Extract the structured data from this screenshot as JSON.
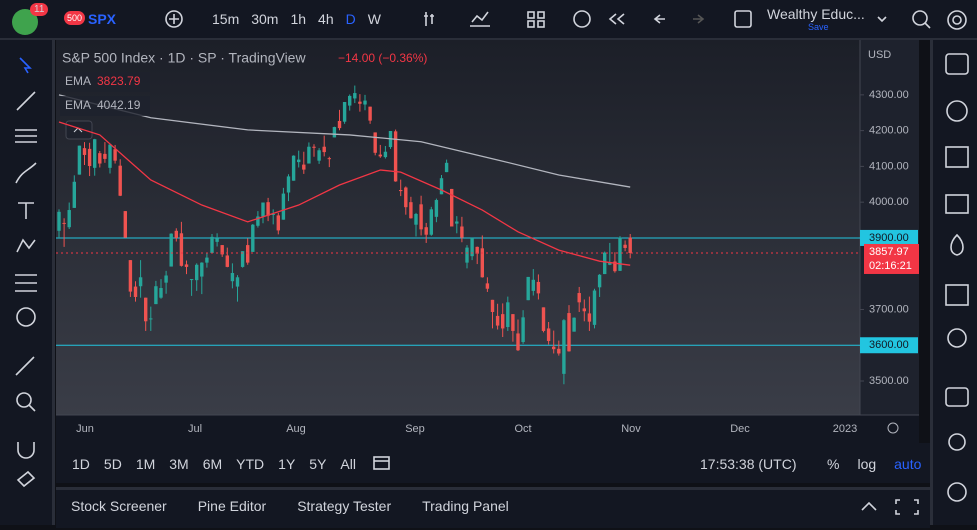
{
  "toolbar": {
    "badge": "11",
    "symbol_badge": "500",
    "symbol": "SPX",
    "intervals": [
      "15m",
      "30m",
      "1h",
      "4h",
      "D",
      "W"
    ],
    "layout_name": "Wealthy Educ...",
    "save": "Save"
  },
  "chart_data": {
    "type": "candlestick",
    "title": "S&P 500 Index · 1D · SP · TradingView",
    "change": "−14.00 (−0.36%)",
    "currency": "USD",
    "up_color": "#26a69a",
    "down_color": "#ef5350",
    "candles": [
      [
        3920,
        3980,
        3900,
        3973
      ],
      [
        3942,
        3955,
        3875,
        3941
      ],
      [
        3930,
        3999,
        3925,
        3978
      ],
      [
        3984,
        4075,
        3984,
        4057
      ],
      [
        4077,
        4158,
        4077,
        4158
      ],
      [
        4151,
        4168,
        4104,
        4132
      ],
      [
        4149,
        4166,
        4073,
        4101
      ],
      [
        4096,
        4177,
        4074,
        4176
      ],
      [
        4137,
        4143,
        4097,
        4108
      ],
      [
        4135,
        4168,
        4110,
        4121
      ],
      [
        4096,
        4164,
        4080,
        4161
      ],
      [
        4148,
        4160,
        4108,
        4116
      ],
      [
        4102,
        4120,
        4017,
        4018
      ],
      [
        3975,
        3975,
        3900,
        3901
      ],
      [
        3838,
        3838,
        3735,
        3750
      ],
      [
        3764,
        3779,
        3722,
        3735
      ],
      [
        3765,
        3838,
        3733,
        3790
      ],
      [
        3733,
        3733,
        3640,
        3667
      ],
      [
        3675,
        3708,
        3640,
        3675
      ],
      [
        3715,
        3780,
        3715,
        3765
      ],
      [
        3733,
        3785,
        3730,
        3760
      ],
      [
        3775,
        3808,
        3744,
        3795
      ],
      [
        3820,
        3913,
        3820,
        3912
      ],
      [
        3920,
        3927,
        3890,
        3900
      ],
      [
        3913,
        3945,
        3820,
        3822
      ],
      [
        3826,
        3837,
        3799,
        3819
      ],
      [
        3785,
        3785,
        3738,
        3785
      ],
      [
        3782,
        3829,
        3752,
        3825
      ],
      [
        3792,
        3832,
        3743,
        3831
      ],
      [
        3831,
        3857,
        3817,
        3845
      ],
      [
        3858,
        3911,
        3858,
        3903
      ],
      [
        3889,
        3913,
        3876,
        3899
      ],
      [
        3880,
        3880,
        3847,
        3854
      ],
      [
        3851,
        3873,
        3818,
        3819
      ],
      [
        3779,
        3829,
        3759,
        3802
      ],
      [
        3764,
        3796,
        3722,
        3790
      ],
      [
        3819,
        3863,
        3817,
        3863
      ],
      [
        3880,
        3899,
        3825,
        3831
      ],
      [
        3861,
        3939,
        3861,
        3937
      ],
      [
        3934,
        3975,
        3929,
        3960
      ],
      [
        3960,
        3999,
        3941,
        3999
      ],
      [
        4000,
        4012,
        3947,
        3962
      ],
      [
        3966,
        3980,
        3938,
        3967
      ],
      [
        3963,
        3970,
        3910,
        3921
      ],
      [
        3951,
        4040,
        3951,
        4024
      ],
      [
        4027,
        4078,
        4003,
        4072
      ],
      [
        4060,
        4131,
        4060,
        4130
      ],
      [
        4112,
        4144,
        4097,
        4119
      ],
      [
        4105,
        4141,
        4079,
        4091
      ],
      [
        4108,
        4167,
        4108,
        4155
      ],
      [
        4155,
        4162,
        4127,
        4152
      ],
      [
        4116,
        4151,
        4107,
        4145
      ],
      [
        4155,
        4186,
        4128,
        4140
      ],
      [
        4123,
        4127,
        4098,
        4122
      ],
      [
        4181,
        4211,
        4181,
        4210
      ],
      [
        4227,
        4258,
        4201,
        4207
      ],
      [
        4225,
        4280,
        4219,
        4280
      ],
      [
        4270,
        4301,
        4256,
        4297
      ],
      [
        4290,
        4326,
        4277,
        4305
      ],
      [
        4281,
        4302,
        4253,
        4275
      ],
      [
        4273,
        4300,
        4257,
        4284
      ],
      [
        4267,
        4267,
        4219,
        4228
      ],
      [
        4195,
        4195,
        4131,
        4138
      ],
      [
        4133,
        4160,
        4124,
        4128
      ],
      [
        4126,
        4157,
        4122,
        4141
      ],
      [
        4154,
        4199,
        4149,
        4199
      ],
      [
        4198,
        4203,
        4057,
        4058
      ],
      [
        4034,
        4063,
        4017,
        4031
      ],
      [
        4041,
        4044,
        3965,
        3986
      ],
      [
        4000,
        4015,
        3954,
        3955
      ],
      [
        3937,
        3970,
        3904,
        3967
      ],
      [
        3994,
        4018,
        3907,
        3924
      ],
      [
        3930,
        3942,
        3886,
        3909
      ],
      [
        3909,
        3987,
        3906,
        3980
      ],
      [
        3959,
        4010,
        3944,
        4006
      ],
      [
        4022,
        4076,
        4022,
        4067
      ],
      [
        4084,
        4119,
        4084,
        4110
      ],
      [
        4037,
        4037,
        3933,
        3932
      ],
      [
        3940,
        3961,
        3913,
        3946
      ],
      [
        3932,
        3959,
        3888,
        3901
      ],
      [
        3831,
        3880,
        3815,
        3873
      ],
      [
        3849,
        3900,
        3838,
        3900
      ],
      [
        3875,
        3876,
        3827,
        3856
      ],
      [
        3871,
        3907,
        3789,
        3790
      ],
      [
        3773,
        3790,
        3749,
        3758
      ],
      [
        3727,
        3727,
        3647,
        3693
      ],
      [
        3682,
        3716,
        3644,
        3655
      ],
      [
        3687,
        3717,
        3623,
        3647
      ],
      [
        3651,
        3736,
        3640,
        3720
      ],
      [
        3687,
        3687,
        3610,
        3640
      ],
      [
        3633,
        3672,
        3584,
        3586
      ],
      [
        3609,
        3698,
        3604,
        3678
      ],
      [
        3726,
        3791,
        3726,
        3791
      ],
      [
        3752,
        3813,
        3739,
        3783
      ],
      [
        3777,
        3798,
        3728,
        3745
      ],
      [
        3706,
        3706,
        3636,
        3640
      ],
      [
        3647,
        3665,
        3602,
        3612
      ],
      [
        3596,
        3641,
        3577,
        3589
      ],
      [
        3590,
        3613,
        3571,
        3577
      ],
      [
        3520,
        3673,
        3491,
        3670
      ],
      [
        3690,
        3712,
        3582,
        3583
      ],
      [
        3638,
        3678,
        3638,
        3677
      ],
      [
        3746,
        3763,
        3693,
        3720
      ],
      [
        3703,
        3728,
        3667,
        3695
      ],
      [
        3689,
        3736,
        3640,
        3666
      ],
      [
        3657,
        3758,
        3647,
        3753
      ],
      [
        3762,
        3799,
        3735,
        3797
      ],
      [
        3799,
        3862,
        3799,
        3859
      ],
      [
        3825,
        3886,
        3824,
        3831
      ],
      [
        3834,
        3860,
        3803,
        3807
      ],
      [
        3808,
        3905,
        3808,
        3901
      ],
      [
        3881,
        3893,
        3863,
        3872
      ],
      [
        3901,
        3911,
        3843,
        3857.97
      ]
    ],
    "series": [
      {
        "name": "EMA",
        "color": "#f23645",
        "x": [
          0,
          8,
          18,
          28,
          37,
          47,
          55,
          63,
          67,
          75,
          83,
          90,
          98,
          106,
          112
        ],
        "values": [
          4224,
          4188,
          4062,
          3992,
          3945,
          3992,
          4048,
          4090,
          4084,
          4034,
          3978,
          3917,
          3866,
          3835,
          3823.79
        ]
      },
      {
        "name": "EMA",
        "color": "#b2b5be",
        "x": [
          0,
          18,
          37,
          57,
          71,
          86,
          98,
          112
        ],
        "values": [
          4300,
          4236,
          4202,
          4188,
          4169,
          4118,
          4076,
          4042.19
        ]
      }
    ],
    "ylim": [
      3405,
      4431
    ],
    "yticks": [
      {
        "value": 4300,
        "label": "4300.00"
      },
      {
        "value": 4200,
        "label": "4200.00"
      },
      {
        "value": 4100,
        "label": "4100.00"
      },
      {
        "value": 4000,
        "label": "4000.00"
      },
      {
        "value": 3700,
        "label": "3700.00"
      },
      {
        "value": 3500,
        "label": "3500.00"
      }
    ],
    "levels": [
      {
        "value": 3900,
        "label": "3900.00",
        "color": "#22c5e0"
      },
      {
        "value": 3600,
        "label": "3600.00",
        "color": "#22c5e0"
      }
    ],
    "last_price": {
      "value": 3857.97,
      "label": "3857.97",
      "color": "#f23645"
    },
    "countdown": "02:16:21",
    "x_labels": [
      "Jun",
      "Jul",
      "Aug",
      "Sep",
      "Oct",
      "Nov",
      "Dec",
      "2023"
    ]
  },
  "range_bar": {
    "ranges": [
      "1D",
      "5D",
      "1M",
      "3M",
      "6M",
      "YTD",
      "1Y",
      "5Y",
      "All"
    ],
    "clock": "17:53:38 (UTC)",
    "options": [
      "%",
      "log",
      "auto"
    ]
  },
  "bottom_panel": {
    "tabs": [
      "Stock Screener",
      "Pine Editor",
      "Strategy Tester",
      "Trading Panel"
    ]
  }
}
